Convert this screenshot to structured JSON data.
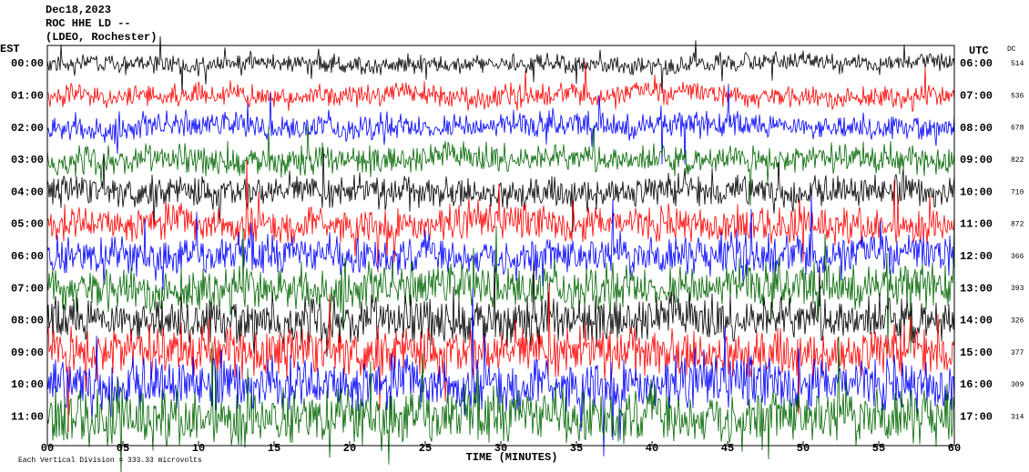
{
  "chart_data": {
    "type": "helicorder",
    "title_lines": [
      "Dec18,2023",
      "ROC HHE LD --",
      "(LDEO, Rochester)"
    ],
    "left_header": "EST",
    "right_header": "UTC",
    "dc_header": "DC",
    "xlabel": "TIME (MINUTES)",
    "footer": "Each Vertical Division = 333.33 microvolts",
    "xlim": [
      0,
      60
    ],
    "xticks": [
      {
        "value": 0,
        "label": "00"
      },
      {
        "value": 5,
        "label": "05"
      },
      10,
      15,
      20,
      25,
      30,
      35,
      40,
      45,
      50,
      55,
      60
    ],
    "rows": [
      {
        "est": "00:00",
        "utc": "06:00",
        "dc": 514,
        "color": "#000000"
      },
      {
        "est": "01:00",
        "utc": "07:00",
        "dc": 536,
        "color": "#ff0000"
      },
      {
        "est": "02:00",
        "utc": "08:00",
        "dc": 678,
        "color": "#0000ff"
      },
      {
        "est": "03:00",
        "utc": "09:00",
        "dc": 822,
        "color": "#006600"
      },
      {
        "est": "04:00",
        "utc": "10:00",
        "dc": 710,
        "color": "#000000"
      },
      {
        "est": "05:00",
        "utc": "11:00",
        "dc": 872,
        "color": "#ff0000"
      },
      {
        "est": "06:00",
        "utc": "12:00",
        "dc": 366,
        "color": "#0000ff"
      },
      {
        "est": "07:00",
        "utc": "13:00",
        "dc": 393,
        "color": "#006600"
      },
      {
        "est": "08:00",
        "utc": "14:00",
        "dc": 326,
        "color": "#000000"
      },
      {
        "est": "09:00",
        "utc": "15:00",
        "dc": 377,
        "color": "#ff0000"
      },
      {
        "est": "10:00",
        "utc": "16:00",
        "dc": 309,
        "color": "#0000ff"
      },
      {
        "est": "11:00",
        "utc": "17:00",
        "dc": 314,
        "color": "#006600"
      }
    ]
  }
}
